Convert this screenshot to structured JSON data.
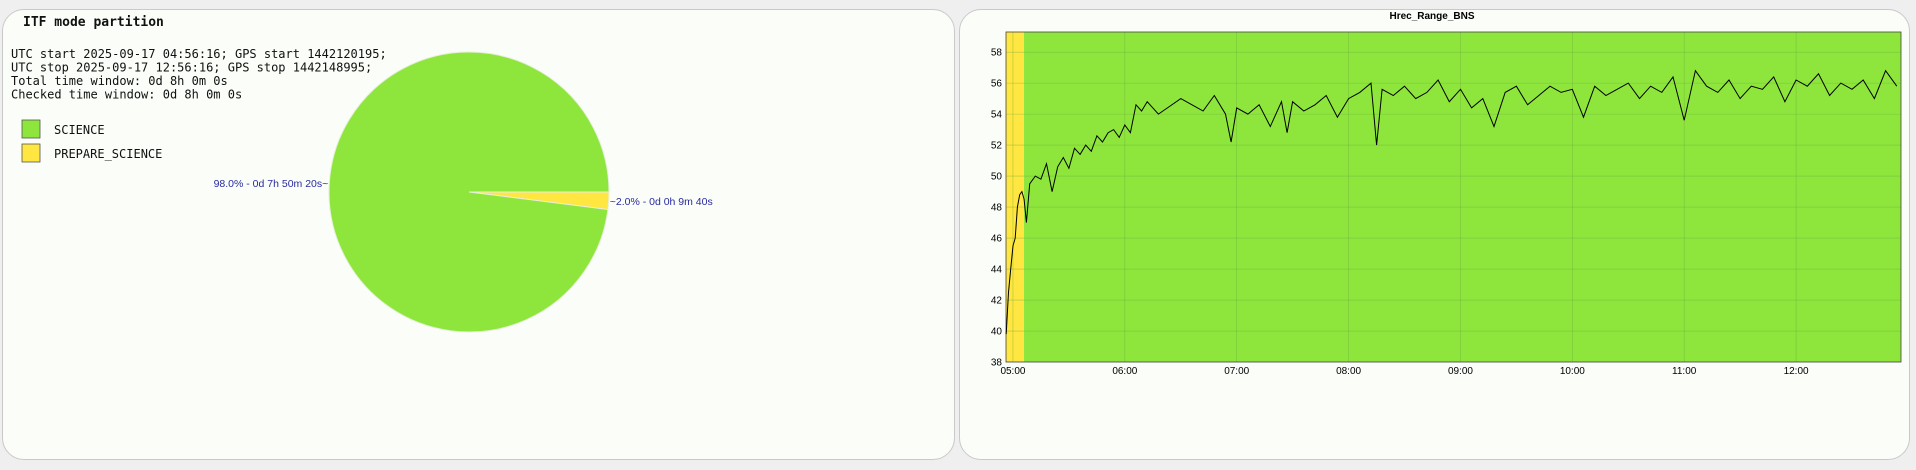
{
  "pie_panel": {
    "title": "ITF mode partition",
    "info_lines": [
      "UTC start 2025-09-17 04:56:16; GPS start 1442120195;",
      "UTC stop 2025-09-17 12:56:16; GPS stop 1442148995;",
      "Total time window: 0d 8h 0m 0s",
      "Checked time window: 0d 8h 0m 0s"
    ],
    "legend": [
      {
        "label": "SCIENCE",
        "color": "#8ee63c"
      },
      {
        "label": "PREPARE_SCIENCE",
        "color": "#ffe640"
      }
    ]
  },
  "line_panel": {
    "title": "Hrec_Range_BNS"
  },
  "chart_data": [
    {
      "type": "pie",
      "title": "ITF mode partition",
      "slices": [
        {
          "name": "SCIENCE",
          "value": 98.0,
          "color": "#8ee63c",
          "label": "98.0% - 0d 7h 50m 20s~"
        },
        {
          "name": "PREPARE_SCIENCE",
          "value": 2.0,
          "color": "#ffe640",
          "label": "~2.0% - 0d 0h 9m 40s"
        }
      ]
    },
    {
      "type": "line",
      "title": "Hrec_Range_BNS",
      "xlabel": "",
      "ylabel": "",
      "x_ticks": [
        "05:00",
        "06:00",
        "07:00",
        "08:00",
        "09:00",
        "10:00",
        "11:00",
        "12:00"
      ],
      "y_ticks": [
        38,
        40,
        42,
        44,
        46,
        48,
        50,
        52,
        54,
        56,
        58
      ],
      "ylim": [
        38,
        59.3
      ],
      "xlim_hours": [
        4.9378,
        12.9378
      ],
      "grid": true,
      "background_segments": [
        {
          "name": "PREPARE_SCIENCE",
          "start": 4.9378,
          "end": 5.0989,
          "color": "#ffe640"
        },
        {
          "name": "SCIENCE",
          "start": 5.0989,
          "end": 12.9378,
          "color": "#8ee63c"
        }
      ],
      "series": [
        {
          "color": "#000000",
          "x": [
            4.94,
            4.96,
            4.98,
            5.0,
            5.02,
            5.04,
            5.06,
            5.08,
            5.1,
            5.12,
            5.15,
            5.2,
            5.25,
            5.3,
            5.35,
            5.4,
            5.45,
            5.5,
            5.55,
            5.6,
            5.65,
            5.7,
            5.75,
            5.8,
            5.85,
            5.9,
            5.95,
            6.0,
            6.05,
            6.1,
            6.15,
            6.2,
            6.3,
            6.4,
            6.5,
            6.6,
            6.7,
            6.8,
            6.9,
            6.95,
            7.0,
            7.1,
            7.2,
            7.3,
            7.4,
            7.45,
            7.5,
            7.6,
            7.7,
            7.8,
            7.9,
            8.0,
            8.1,
            8.2,
            8.25,
            8.3,
            8.4,
            8.5,
            8.6,
            8.7,
            8.8,
            8.9,
            9.0,
            9.1,
            9.2,
            9.3,
            9.4,
            9.5,
            9.6,
            9.7,
            9.8,
            9.9,
            10.0,
            10.1,
            10.2,
            10.3,
            10.4,
            10.5,
            10.6,
            10.7,
            10.8,
            10.9,
            11.0,
            11.1,
            11.2,
            11.3,
            11.4,
            11.5,
            11.6,
            11.7,
            11.8,
            11.9,
            12.0,
            12.1,
            12.2,
            12.3,
            12.4,
            12.5,
            12.6,
            12.7,
            12.8,
            12.9
          ],
          "y": [
            39.8,
            42.5,
            44.0,
            45.5,
            46.0,
            48.0,
            48.8,
            49.0,
            48.5,
            47.0,
            49.5,
            50.0,
            49.8,
            50.8,
            49.0,
            50.6,
            51.2,
            50.5,
            51.8,
            51.4,
            52.0,
            51.6,
            52.6,
            52.2,
            52.8,
            53.0,
            52.5,
            53.3,
            52.8,
            54.6,
            54.2,
            54.8,
            54.0,
            54.5,
            55.0,
            54.6,
            54.2,
            55.2,
            54.0,
            52.2,
            54.4,
            54.0,
            54.6,
            53.2,
            54.8,
            52.8,
            54.8,
            54.2,
            54.6,
            55.2,
            53.8,
            55.0,
            55.4,
            56.0,
            52.0,
            55.6,
            55.2,
            55.8,
            55.0,
            55.4,
            56.2,
            54.8,
            55.6,
            54.4,
            55.0,
            53.2,
            55.4,
            55.8,
            54.6,
            55.2,
            55.8,
            55.4,
            55.6,
            53.8,
            55.8,
            55.2,
            55.6,
            56.0,
            55.0,
            55.8,
            55.4,
            56.4,
            53.6,
            56.8,
            55.8,
            55.4,
            56.2,
            55.0,
            55.8,
            55.6,
            56.4,
            54.8,
            56.2,
            55.8,
            56.6,
            55.2,
            56.0,
            55.6,
            56.2,
            55.0,
            56.8,
            55.8
          ]
        }
      ]
    }
  ]
}
